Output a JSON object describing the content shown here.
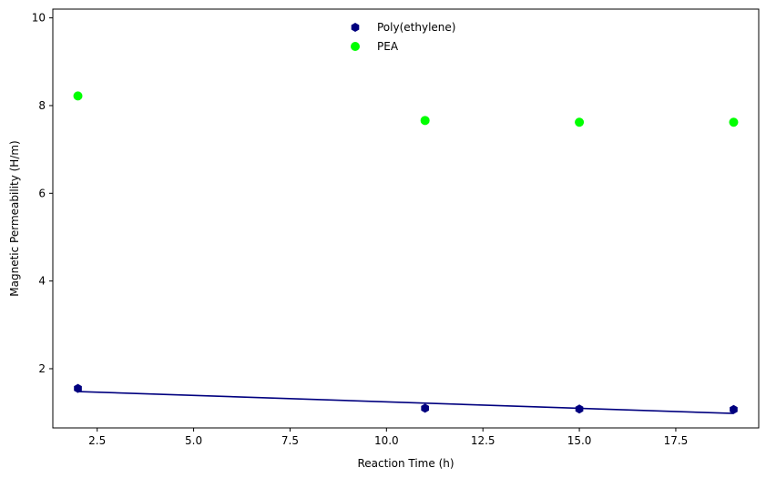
{
  "chart_data": {
    "type": "scatter",
    "xlabel": "Reaction Time (h)",
    "ylabel": "Magnetic Permeability (H/m)",
    "xlim": [
      1.35,
      19.65
    ],
    "ylim": [
      0.65,
      10.2
    ],
    "xticks": [
      2.5,
      5.0,
      7.5,
      10.0,
      12.5,
      15.0,
      17.5
    ],
    "xtick_labels": [
      "2.5",
      "5.0",
      "7.5",
      "10.0",
      "12.5",
      "15.0",
      "17.5"
    ],
    "yticks": [
      2,
      4,
      6,
      8,
      10
    ],
    "ytick_labels": [
      "2",
      "4",
      "6",
      "8",
      "10"
    ],
    "grid": false,
    "legend_position": "top-center",
    "series": [
      {
        "name": "Poly(ethylene)",
        "marker": "hexagon",
        "color": "#00007f",
        "x": [
          2,
          11,
          15,
          19
        ],
        "y": [
          1.55,
          1.1,
          1.08,
          1.07
        ],
        "fit_line": {
          "x": [
            2,
            19
          ],
          "y": [
            1.48,
            0.98
          ]
        }
      },
      {
        "name": "PEA",
        "marker": "circle",
        "color": "#00ff00",
        "x": [
          2,
          11,
          15,
          19
        ],
        "y": [
          8.22,
          7.66,
          7.62,
          7.62
        ]
      }
    ]
  }
}
